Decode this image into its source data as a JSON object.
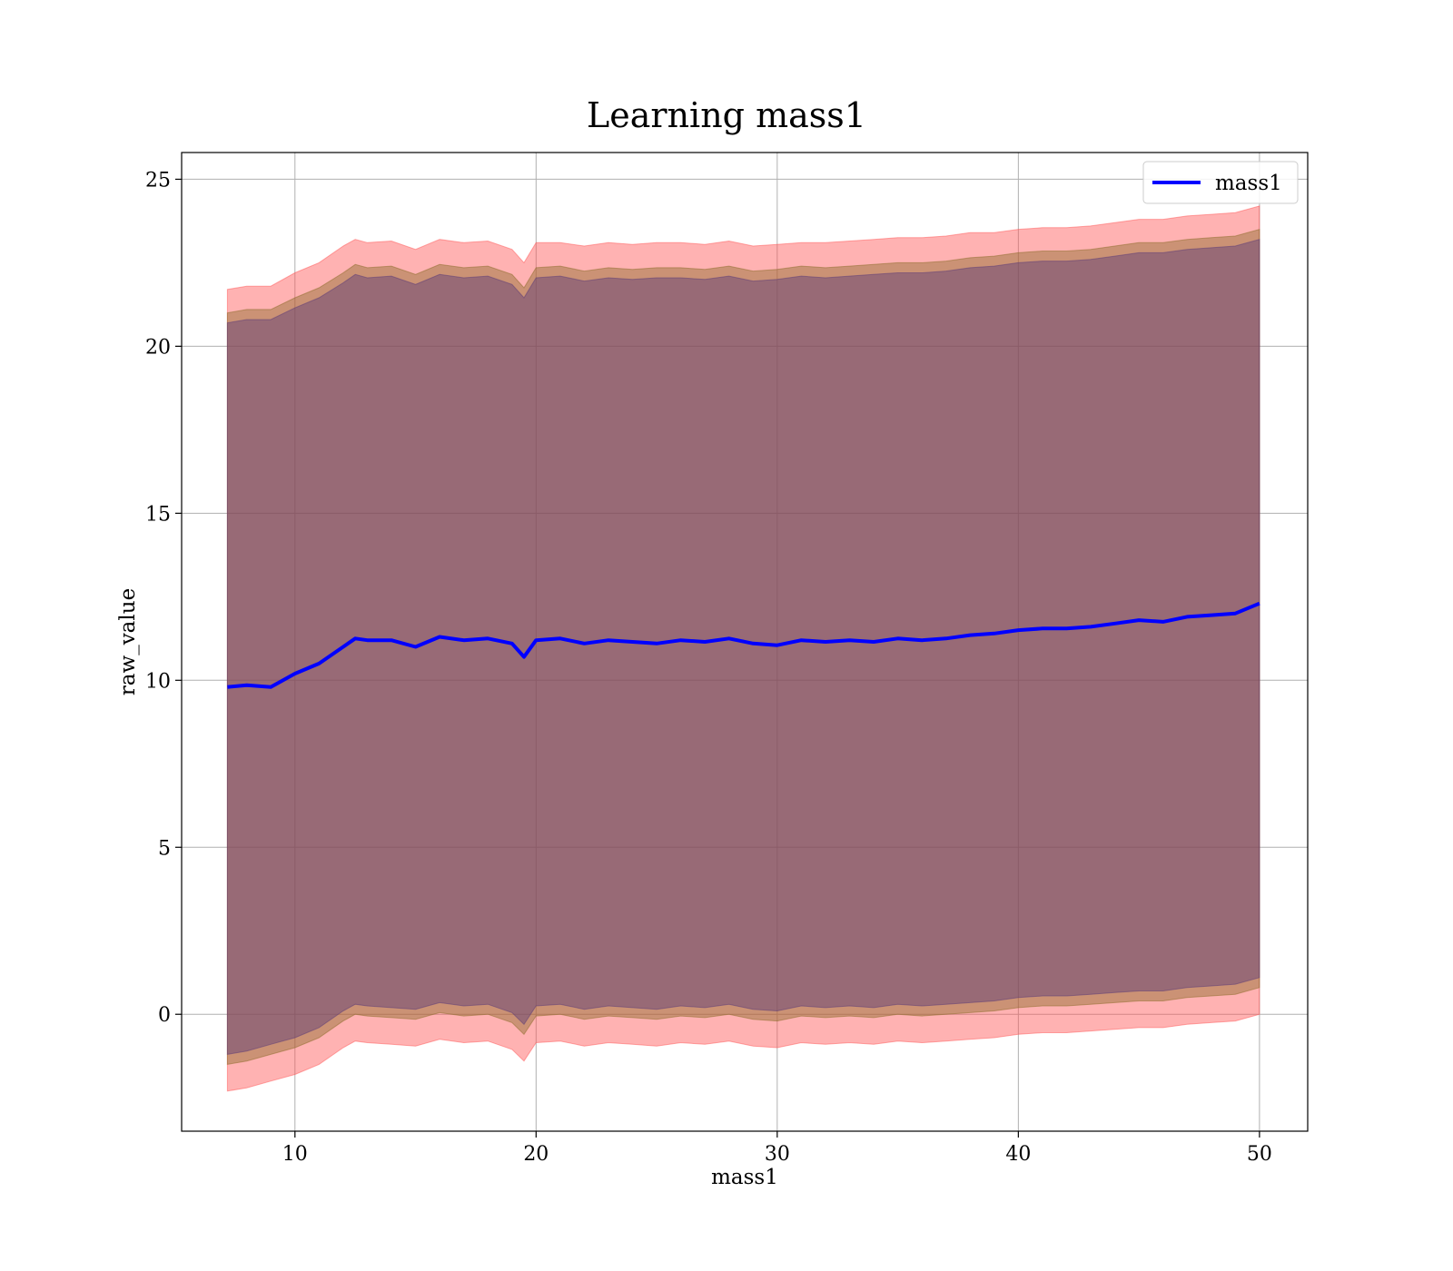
{
  "chart_data": {
    "type": "line",
    "title": "Learning mass1",
    "xlabel": "mass1",
    "ylabel": "raw_value",
    "xlim": [
      5.3,
      52.0
    ],
    "ylim": [
      -3.5,
      25.8
    ],
    "xticks": [
      10,
      20,
      30,
      40,
      50
    ],
    "yticks": [
      0,
      5,
      10,
      15,
      20,
      25
    ],
    "grid": true,
    "legend": {
      "position": "upper right",
      "entries": [
        "mass1"
      ]
    },
    "series": [
      {
        "name": "mass1",
        "color": "#0000ff",
        "x": [
          7.2,
          8.0,
          9.0,
          10.0,
          11.0,
          12.0,
          12.5,
          13.0,
          14.0,
          15.0,
          16.0,
          17.0,
          18.0,
          19.0,
          19.5,
          20.0,
          21.0,
          22.0,
          23.0,
          24.0,
          25.0,
          26.0,
          27.0,
          28.0,
          29.0,
          30.0,
          31.0,
          32.0,
          33.0,
          34.0,
          35.0,
          36.0,
          37.0,
          38.0,
          39.0,
          40.0,
          41.0,
          42.0,
          43.0,
          44.0,
          45.0,
          46.0,
          47.0,
          48.0,
          49.0,
          50.0
        ],
        "y": [
          9.8,
          9.85,
          9.8,
          10.2,
          10.5,
          11.0,
          11.25,
          11.2,
          11.2,
          11.0,
          11.3,
          11.2,
          11.25,
          11.1,
          10.7,
          11.2,
          11.25,
          11.1,
          11.2,
          11.15,
          11.1,
          11.2,
          11.15,
          11.25,
          11.1,
          11.05,
          11.2,
          11.15,
          11.2,
          11.15,
          11.25,
          11.2,
          11.25,
          11.35,
          11.4,
          11.5,
          11.55,
          11.55,
          11.6,
          11.7,
          11.8,
          11.75,
          11.9,
          11.95,
          12.0,
          12.3
        ]
      }
    ],
    "bands": [
      {
        "color": "#ff5555",
        "lower": [
          -2.3,
          -2.2,
          -2.0,
          -1.8,
          -1.5,
          -1.0,
          -0.8,
          -0.85,
          -0.9,
          -0.95,
          -0.75,
          -0.85,
          -0.8,
          -1.05,
          -1.4,
          -0.85,
          -0.8,
          -0.95,
          -0.85,
          -0.9,
          -0.95,
          -0.85,
          -0.9,
          -0.8,
          -0.95,
          -1.0,
          -0.85,
          -0.9,
          -0.85,
          -0.9,
          -0.8,
          -0.85,
          -0.8,
          -0.75,
          -0.7,
          -0.6,
          -0.55,
          -0.55,
          -0.5,
          -0.45,
          -0.4,
          -0.4,
          -0.3,
          -0.25,
          -0.2,
          0.0
        ],
        "upper": [
          21.7,
          21.8,
          21.8,
          22.2,
          22.5,
          23.0,
          23.2,
          23.1,
          23.15,
          22.9,
          23.2,
          23.1,
          23.15,
          22.9,
          22.5,
          23.1,
          23.1,
          23.0,
          23.1,
          23.05,
          23.1,
          23.1,
          23.05,
          23.15,
          23.0,
          23.05,
          23.1,
          23.1,
          23.15,
          23.2,
          23.25,
          23.25,
          23.3,
          23.4,
          23.4,
          23.5,
          23.55,
          23.55,
          23.6,
          23.7,
          23.8,
          23.8,
          23.9,
          23.95,
          24.0,
          24.2
        ]
      },
      {
        "color": "#8b6b2a",
        "lower": [
          -1.5,
          -1.4,
          -1.2,
          -1.0,
          -0.7,
          -0.2,
          0.0,
          -0.05,
          -0.1,
          -0.15,
          0.05,
          -0.05,
          0.0,
          -0.25,
          -0.6,
          -0.05,
          0.0,
          -0.15,
          -0.05,
          -0.1,
          -0.15,
          -0.05,
          -0.1,
          0.0,
          -0.15,
          -0.2,
          -0.05,
          -0.1,
          -0.05,
          -0.1,
          0.0,
          -0.05,
          0.0,
          0.05,
          0.1,
          0.2,
          0.25,
          0.25,
          0.3,
          0.35,
          0.4,
          0.4,
          0.5,
          0.55,
          0.6,
          0.8
        ],
        "upper": [
          21.0,
          21.1,
          21.1,
          21.45,
          21.75,
          22.2,
          22.45,
          22.35,
          22.4,
          22.15,
          22.45,
          22.35,
          22.4,
          22.15,
          21.75,
          22.35,
          22.4,
          22.25,
          22.35,
          22.3,
          22.35,
          22.35,
          22.3,
          22.4,
          22.25,
          22.3,
          22.4,
          22.35,
          22.4,
          22.45,
          22.5,
          22.5,
          22.55,
          22.65,
          22.7,
          22.8,
          22.85,
          22.85,
          22.9,
          23.0,
          23.1,
          23.1,
          23.2,
          23.25,
          23.3,
          23.5
        ]
      },
      {
        "color": "#5a3a78",
        "lower": [
          -1.2,
          -1.1,
          -0.9,
          -0.7,
          -0.4,
          0.1,
          0.3,
          0.25,
          0.2,
          0.15,
          0.35,
          0.25,
          0.3,
          0.05,
          -0.3,
          0.25,
          0.3,
          0.15,
          0.25,
          0.2,
          0.15,
          0.25,
          0.2,
          0.3,
          0.15,
          0.1,
          0.25,
          0.2,
          0.25,
          0.2,
          0.3,
          0.25,
          0.3,
          0.35,
          0.4,
          0.5,
          0.55,
          0.55,
          0.6,
          0.65,
          0.7,
          0.7,
          0.8,
          0.85,
          0.9,
          1.1
        ],
        "upper": [
          20.7,
          20.8,
          20.8,
          21.15,
          21.45,
          21.9,
          22.15,
          22.05,
          22.1,
          21.85,
          22.15,
          22.05,
          22.1,
          21.85,
          21.45,
          22.05,
          22.1,
          21.95,
          22.05,
          22.0,
          22.05,
          22.05,
          22.0,
          22.1,
          21.95,
          22.0,
          22.1,
          22.05,
          22.1,
          22.15,
          22.2,
          22.2,
          22.25,
          22.35,
          22.4,
          22.5,
          22.55,
          22.55,
          22.6,
          22.7,
          22.8,
          22.8,
          22.9,
          22.95,
          23.0,
          23.2
        ]
      }
    ]
  }
}
